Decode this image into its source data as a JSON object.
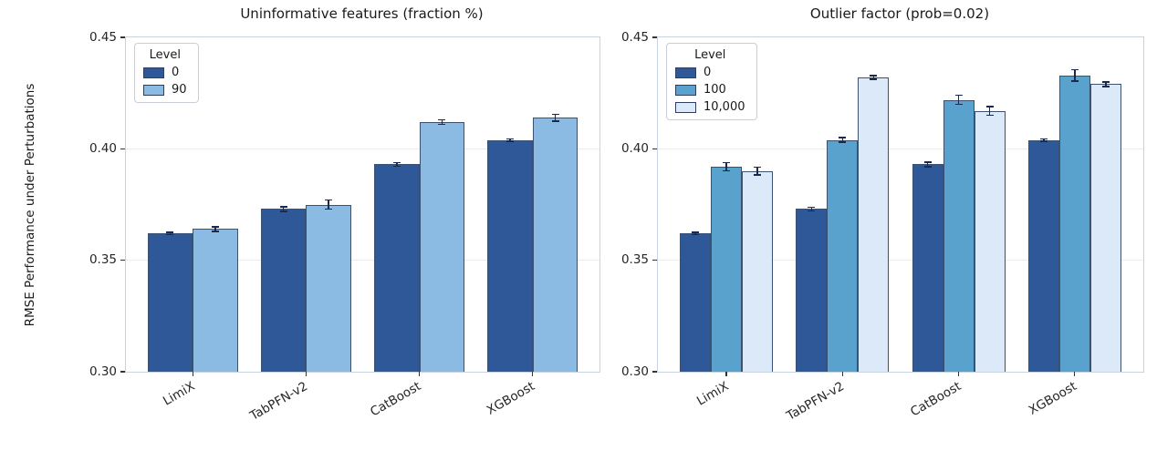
{
  "figure": {
    "ylabel": "RMSE Performance under Perturbations"
  },
  "colors": {
    "level_0": "#2e5897",
    "level_90": "#8bbbe2",
    "level_100": "#58a2cd",
    "level_10000": "#dbe9f8",
    "bar_edge": "#3b5170",
    "error_bar": "#1b2a4a",
    "spine": "#c9d2e0",
    "grid": "#e8ecf4",
    "tick": "#333333",
    "text": "#1a1a1a"
  },
  "chart_data": [
    {
      "type": "bar",
      "title": "Uninformative features (fraction %)",
      "categories": [
        "LimiX",
        "TabPFN-v2",
        "CatBoost",
        "XGBoost"
      ],
      "xlabel": "",
      "ylabel": "RMSE Performance under Perturbations",
      "ylim": [
        0.3,
        0.45
      ],
      "yticks": [
        {
          "value": 0.3,
          "label": "0.30"
        },
        {
          "value": 0.35,
          "label": "0.35"
        },
        {
          "value": 0.4,
          "label": "0.40"
        },
        {
          "value": 0.45,
          "label": "0.45"
        }
      ],
      "grid": true,
      "legend": {
        "title": "Level",
        "position": "upper left"
      },
      "series": [
        {
          "name": "0",
          "color": "#2e5897",
          "values": [
            0.362,
            0.373,
            0.393,
            0.404
          ],
          "errors": [
            0.0005,
            0.001,
            0.0008,
            0.0005
          ]
        },
        {
          "name": "90",
          "color": "#8bbbe2",
          "values": [
            0.364,
            0.375,
            0.412,
            0.414
          ],
          "errors": [
            0.001,
            0.002,
            0.001,
            0.0015
          ]
        }
      ]
    },
    {
      "type": "bar",
      "title": "Outlier factor (prob=0.02)",
      "categories": [
        "LimiX",
        "TabPFN-v2",
        "CatBoost",
        "XGBoost"
      ],
      "xlabel": "",
      "ylabel": "RMSE Performance under Perturbations",
      "ylim": [
        0.3,
        0.45
      ],
      "yticks": [
        {
          "value": 0.3,
          "label": "0.30"
        },
        {
          "value": 0.35,
          "label": "0.35"
        },
        {
          "value": 0.4,
          "label": "0.40"
        },
        {
          "value": 0.45,
          "label": "0.45"
        }
      ],
      "grid": true,
      "legend": {
        "title": "Level",
        "position": "upper left"
      },
      "series": [
        {
          "name": "0",
          "color": "#2e5897",
          "values": [
            0.362,
            0.373,
            0.393,
            0.404
          ],
          "errors": [
            0.0005,
            0.0008,
            0.001,
            0.0005
          ]
        },
        {
          "name": "100",
          "color": "#58a2cd",
          "values": [
            0.392,
            0.404,
            0.422,
            0.433
          ],
          "errors": [
            0.0018,
            0.001,
            0.002,
            0.0025
          ]
        },
        {
          "name": "10,000",
          "color": "#dbe9f8",
          "values": [
            0.39,
            0.432,
            0.417,
            0.429
          ],
          "errors": [
            0.0018,
            0.0008,
            0.002,
            0.001
          ]
        }
      ]
    }
  ]
}
